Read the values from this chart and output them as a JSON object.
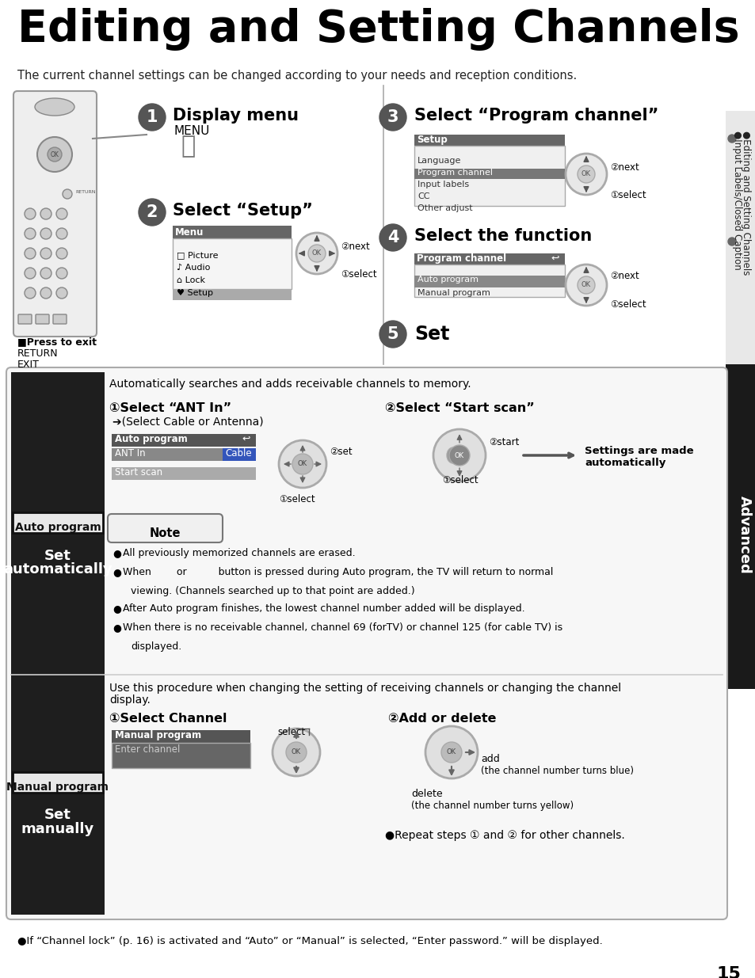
{
  "title": "Editing and Setting Channels",
  "subtitle": "The current channel settings can be changed according to your needs and reception conditions.",
  "bg_color": "#ffffff",
  "step1_title": "Display menu",
  "step1_sub": "MENU",
  "step2_title": "Select “Setup”",
  "step3_title": "Select “Program channel”",
  "step4_title": "Select the function",
  "step5_title": "Set",
  "press_exit_label": "■Press to exit",
  "return_text": "RETURN",
  "exit_text": "EXIT",
  "auto_program_label": "Auto program",
  "auto_program_desc1": "Set",
  "auto_program_desc2": "automatically",
  "manual_program_label": "Manual program",
  "manual_program_desc1": "Set",
  "manual_program_desc2": "manually",
  "auto_header": "Automatically searches and adds receivable channels to memory.",
  "auto_step1": "①Select “ANT In”",
  "auto_step1_sub": "➔(Select Cable or Antenna)",
  "auto_step2": "②Select “Start scan”",
  "auto_settings": "Settings are made\nautomatically",
  "note_title": "Note",
  "note1": "All previously memorized channels are erased.",
  "note2": "When        or          button is pressed during Auto program, the TV will return to normal",
  "note2b": "viewing. (Channels searched up to that point are added.)",
  "note3": "After Auto program finishes, the lowest channel number added will be displayed.",
  "note4": "When there is no receivable channel, channel 69 (forTV) or channel 125 (for cable TV) is",
  "note4b": "displayed.",
  "manual_header1": "Use this procedure when changing the setting of receiving channels or changing the channel",
  "manual_header2": "display.",
  "manual_step1": "①Select Channel",
  "manual_step2": "②Add or delete",
  "select_label": "select",
  "add_label": "add",
  "add_sub": "(the channel number turns blue)",
  "delete_label": "delete",
  "delete_sub": "(the channel number turns yellow)",
  "repeat_text": "●Repeat steps ① and ② for other channels.",
  "footer": "●If “Channel lock” (p. 16) is activated and “Auto” or “Manual” is selected, “Enter password.” will be displayed.",
  "page_num": "15",
  "advanced_label": "Advanced",
  "sidebar1": "●Editing and Setting Channels",
  "sidebar2": "●Input Labels/Closed Caption",
  "next_label": "②next",
  "select_ann": "①select",
  "set_label": "②set",
  "start_label": "②start",
  "select_label2": "①select"
}
